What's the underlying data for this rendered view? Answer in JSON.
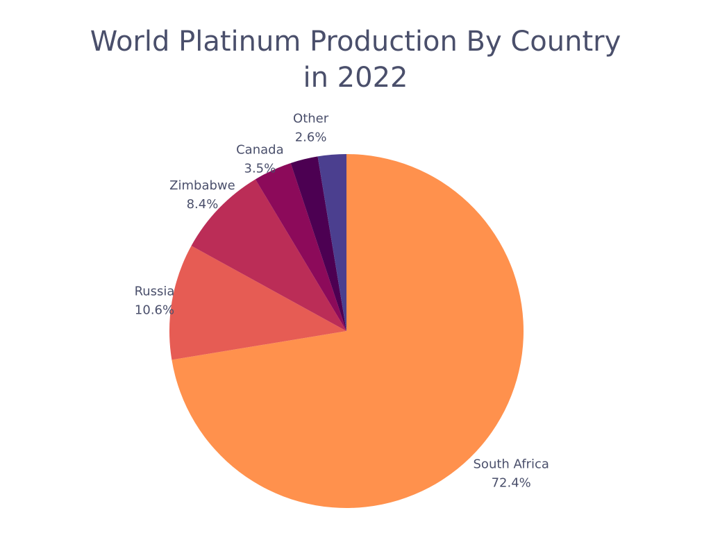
{
  "chart_data": {
    "type": "pie",
    "title": [
      "World Platinum Production By Country",
      "in 2022"
    ],
    "slices": [
      {
        "label": "South Africa",
        "value": 72.4,
        "value_label": "72.4%",
        "color": "#ff914d"
      },
      {
        "label": "Russia",
        "value": 10.6,
        "value_label": "10.6%",
        "color": "#e65c54"
      },
      {
        "label": "Zimbabwe",
        "value": 8.4,
        "value_label": "8.4%",
        "color": "#bb2d57"
      },
      {
        "label": "Canada",
        "value": 3.5,
        "value_label": "3.5%",
        "color": "#8c0a5a"
      },
      {
        "label": "",
        "value": 2.5,
        "value_label": "",
        "color": "#4c0052"
      },
      {
        "label": "Other",
        "value": 2.6,
        "value_label": "2.6%",
        "color": "#4b3f8f"
      }
    ]
  }
}
